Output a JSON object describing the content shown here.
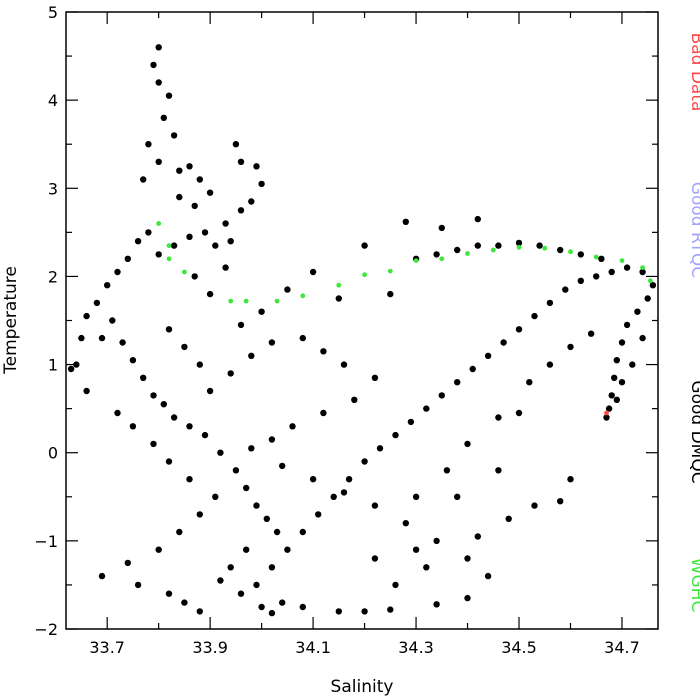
{
  "chart_data": {
    "type": "scatter",
    "title": "",
    "xlabel": "Salinity",
    "ylabel": "Temperature",
    "xlim": [
      33.62,
      34.77
    ],
    "ylim": [
      -2,
      5
    ],
    "x_ticks": [
      "33.7",
      "33.9",
      "34.1",
      "34.3",
      "34.5",
      "34.7"
    ],
    "y_ticks": [
      "−2",
      "−1",
      "0",
      "1",
      "2",
      "3",
      "4",
      "5"
    ],
    "grid": false,
    "legend_placement": "right-side-vertical",
    "legend": [
      {
        "name": "Bad Data",
        "color": "#ff4a4a"
      },
      {
        "name": "Good RTQC",
        "color": "#a3a3ff"
      },
      {
        "name": "Good DMQC",
        "color": "#000000"
      },
      {
        "name": "WGHC",
        "color": "#3ee63e"
      }
    ],
    "series": [
      {
        "name": "Good DMQC",
        "color": "#000000",
        "points": [
          [
            33.8,
            4.6
          ],
          [
            33.79,
            4.4
          ],
          [
            33.8,
            4.2
          ],
          [
            33.82,
            4.05
          ],
          [
            33.81,
            3.8
          ],
          [
            33.78,
            3.5
          ],
          [
            33.83,
            3.6
          ],
          [
            33.8,
            3.3
          ],
          [
            33.77,
            3.1
          ],
          [
            33.84,
            3.2
          ],
          [
            33.86,
            3.25
          ],
          [
            33.88,
            3.1
          ],
          [
            33.9,
            2.95
          ],
          [
            33.87,
            2.8
          ],
          [
            33.84,
            2.9
          ],
          [
            33.95,
            3.5
          ],
          [
            33.96,
            3.3
          ],
          [
            33.99,
            3.25
          ],
          [
            34.0,
            3.05
          ],
          [
            33.98,
            2.85
          ],
          [
            33.96,
            2.75
          ],
          [
            33.93,
            2.6
          ],
          [
            33.94,
            2.4
          ],
          [
            33.91,
            2.35
          ],
          [
            33.89,
            2.5
          ],
          [
            33.86,
            2.45
          ],
          [
            33.83,
            2.35
          ],
          [
            33.8,
            2.25
          ],
          [
            33.78,
            2.5
          ],
          [
            33.76,
            2.4
          ],
          [
            33.74,
            2.2
          ],
          [
            33.72,
            2.05
          ],
          [
            33.7,
            1.9
          ],
          [
            33.68,
            1.7
          ],
          [
            33.66,
            1.55
          ],
          [
            33.65,
            1.3
          ],
          [
            33.64,
            1.0
          ],
          [
            33.63,
            0.95
          ],
          [
            33.66,
            0.7
          ],
          [
            33.69,
            1.3
          ],
          [
            33.71,
            1.5
          ],
          [
            33.73,
            1.25
          ],
          [
            33.75,
            1.05
          ],
          [
            33.77,
            0.85
          ],
          [
            33.79,
            0.65
          ],
          [
            33.81,
            0.55
          ],
          [
            33.83,
            0.4
          ],
          [
            33.86,
            0.3
          ],
          [
            33.89,
            0.2
          ],
          [
            33.92,
            0.0
          ],
          [
            33.95,
            -0.2
          ],
          [
            33.97,
            -0.4
          ],
          [
            33.99,
            -0.6
          ],
          [
            34.01,
            -0.75
          ],
          [
            34.03,
            -0.9
          ],
          [
            33.97,
            -1.1
          ],
          [
            33.94,
            -1.3
          ],
          [
            33.92,
            -1.45
          ],
          [
            33.96,
            -1.6
          ],
          [
            34.0,
            -1.75
          ],
          [
            33.99,
            -1.5
          ],
          [
            34.02,
            -1.3
          ],
          [
            34.05,
            -1.1
          ],
          [
            34.08,
            -0.9
          ],
          [
            34.11,
            -0.7
          ],
          [
            34.14,
            -0.5
          ],
          [
            34.17,
            -0.3
          ],
          [
            34.2,
            -0.1
          ],
          [
            34.23,
            0.05
          ],
          [
            34.26,
            0.2
          ],
          [
            34.29,
            0.35
          ],
          [
            34.32,
            0.5
          ],
          [
            34.35,
            0.65
          ],
          [
            34.38,
            0.8
          ],
          [
            34.41,
            0.95
          ],
          [
            34.44,
            1.1
          ],
          [
            34.47,
            1.25
          ],
          [
            34.5,
            1.4
          ],
          [
            34.53,
            1.55
          ],
          [
            34.56,
            1.7
          ],
          [
            34.59,
            1.85
          ],
          [
            34.62,
            1.95
          ],
          [
            34.65,
            2.0
          ],
          [
            34.68,
            2.05
          ],
          [
            34.71,
            2.1
          ],
          [
            34.74,
            2.05
          ],
          [
            34.76,
            1.9
          ],
          [
            34.75,
            1.75
          ],
          [
            34.73,
            1.6
          ],
          [
            34.71,
            1.45
          ],
          [
            34.7,
            1.25
          ],
          [
            34.69,
            1.05
          ],
          [
            34.685,
            0.85
          ],
          [
            34.68,
            0.65
          ],
          [
            34.675,
            0.5
          ],
          [
            34.67,
            0.4
          ],
          [
            34.69,
            0.6
          ],
          [
            34.7,
            0.8
          ],
          [
            34.72,
            1.0
          ],
          [
            34.74,
            1.3
          ],
          [
            34.3,
            2.2
          ],
          [
            34.34,
            2.25
          ],
          [
            34.38,
            2.3
          ],
          [
            34.42,
            2.35
          ],
          [
            34.46,
            2.35
          ],
          [
            34.5,
            2.38
          ],
          [
            34.54,
            2.35
          ],
          [
            34.58,
            2.3
          ],
          [
            34.62,
            2.25
          ],
          [
            34.66,
            2.2
          ],
          [
            34.28,
            2.62
          ],
          [
            34.42,
            2.65
          ],
          [
            34.35,
            2.55
          ],
          [
            34.2,
            2.35
          ],
          [
            34.1,
            2.05
          ],
          [
            34.05,
            1.85
          ],
          [
            34.0,
            1.6
          ],
          [
            33.96,
            1.45
          ],
          [
            34.15,
            1.75
          ],
          [
            34.25,
            1.8
          ],
          [
            34.08,
            1.3
          ],
          [
            34.12,
            1.15
          ],
          [
            34.16,
            1.0
          ],
          [
            34.22,
            0.85
          ],
          [
            34.18,
            0.6
          ],
          [
            34.12,
            0.45
          ],
          [
            34.06,
            0.3
          ],
          [
            34.02,
            0.15
          ],
          [
            33.98,
            0.05
          ],
          [
            34.04,
            -0.15
          ],
          [
            34.1,
            -0.3
          ],
          [
            34.16,
            -0.45
          ],
          [
            34.22,
            -0.6
          ],
          [
            34.28,
            -0.8
          ],
          [
            34.34,
            -1.0
          ],
          [
            34.4,
            -1.2
          ],
          [
            34.44,
            -1.4
          ],
          [
            34.4,
            -1.65
          ],
          [
            34.34,
            -1.72
          ],
          [
            34.25,
            -1.78
          ],
          [
            34.2,
            -1.8
          ],
          [
            34.15,
            -1.8
          ],
          [
            34.08,
            -1.75
          ],
          [
            34.04,
            -1.7
          ],
          [
            34.02,
            -1.82
          ],
          [
            33.88,
            -1.8
          ],
          [
            33.85,
            -1.7
          ],
          [
            33.82,
            -1.6
          ],
          [
            33.76,
            -1.5
          ],
          [
            33.74,
            -1.25
          ],
          [
            33.69,
            -1.4
          ],
          [
            33.8,
            -1.1
          ],
          [
            33.84,
            -0.9
          ],
          [
            33.88,
            -0.7
          ],
          [
            33.91,
            -0.5
          ],
          [
            33.86,
            -0.3
          ],
          [
            33.82,
            -0.1
          ],
          [
            33.79,
            0.1
          ],
          [
            33.75,
            0.3
          ],
          [
            33.72,
            0.45
          ],
          [
            33.9,
            0.7
          ],
          [
            33.94,
            0.9
          ],
          [
            33.98,
            1.1
          ],
          [
            34.02,
            1.25
          ],
          [
            33.88,
            1.0
          ],
          [
            33.85,
            1.2
          ],
          [
            33.82,
            1.4
          ],
          [
            33.9,
            1.8
          ],
          [
            33.87,
            2.0
          ],
          [
            33.93,
            2.1
          ],
          [
            34.3,
            -0.5
          ],
          [
            34.36,
            -0.2
          ],
          [
            34.4,
            0.1
          ],
          [
            34.46,
            0.4
          ],
          [
            34.52,
            0.8
          ],
          [
            34.56,
            1.0
          ],
          [
            34.6,
            1.2
          ],
          [
            34.64,
            1.35
          ],
          [
            34.5,
            0.45
          ],
          [
            34.46,
            -0.2
          ],
          [
            34.53,
            -0.6
          ],
          [
            34.58,
            -0.55
          ],
          [
            34.6,
            -0.3
          ],
          [
            34.48,
            -0.75
          ],
          [
            34.42,
            -0.95
          ],
          [
            34.38,
            -0.5
          ],
          [
            34.32,
            -1.3
          ],
          [
            34.26,
            -1.5
          ],
          [
            34.3,
            -1.1
          ],
          [
            34.22,
            -1.2
          ]
        ]
      },
      {
        "name": "WGHC",
        "color": "#3ee63e",
        "points": [
          [
            33.8,
            2.6
          ],
          [
            33.82,
            2.35
          ],
          [
            33.82,
            2.2
          ],
          [
            33.85,
            2.05
          ],
          [
            33.94,
            1.72
          ],
          [
            33.97,
            1.72
          ],
          [
            34.03,
            1.72
          ],
          [
            34.08,
            1.78
          ],
          [
            34.15,
            1.9
          ],
          [
            34.2,
            2.02
          ],
          [
            34.25,
            2.06
          ],
          [
            34.3,
            2.18
          ],
          [
            34.35,
            2.2
          ],
          [
            34.4,
            2.26
          ],
          [
            34.45,
            2.3
          ],
          [
            34.5,
            2.33
          ],
          [
            34.55,
            2.32
          ],
          [
            34.6,
            2.28
          ],
          [
            34.65,
            2.22
          ],
          [
            34.7,
            2.18
          ],
          [
            34.74,
            2.1
          ],
          [
            34.755,
            1.95
          ]
        ]
      },
      {
        "name": "Bad Data",
        "color": "#ff4a4a",
        "points": [
          [
            34.67,
            0.45
          ]
        ]
      }
    ]
  }
}
